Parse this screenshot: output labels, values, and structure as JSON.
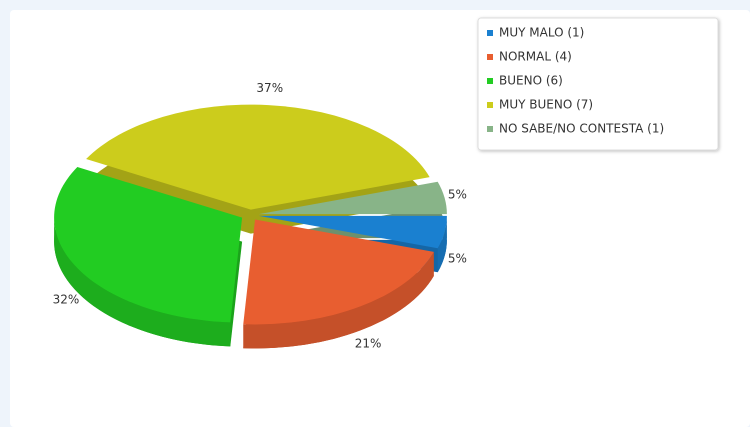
{
  "chart_data": {
    "type": "pie",
    "series": [
      {
        "name": "MUY MALO (1)",
        "color": "#1a80d0",
        "values": [
          5
        ],
        "value_labels": [
          "5%"
        ]
      },
      {
        "name": "NORMAL (4)",
        "color": "#e85e30",
        "values": [
          21
        ],
        "value_labels": [
          "21%"
        ]
      },
      {
        "name": "BUENO (6)",
        "color": "#22cc22",
        "values": [
          32
        ],
        "value_labels": [
          "32%"
        ]
      },
      {
        "name": "MUY BUENO (7)",
        "color": "#cccc1c",
        "values": [
          37
        ],
        "value_labels": [
          "37%"
        ]
      },
      {
        "name": "NO SABE/NO CONTESTA (1)",
        "color": "#88b488",
        "values": [
          5
        ],
        "value_labels": [
          "5%"
        ]
      }
    ],
    "legend": "top-right"
  }
}
